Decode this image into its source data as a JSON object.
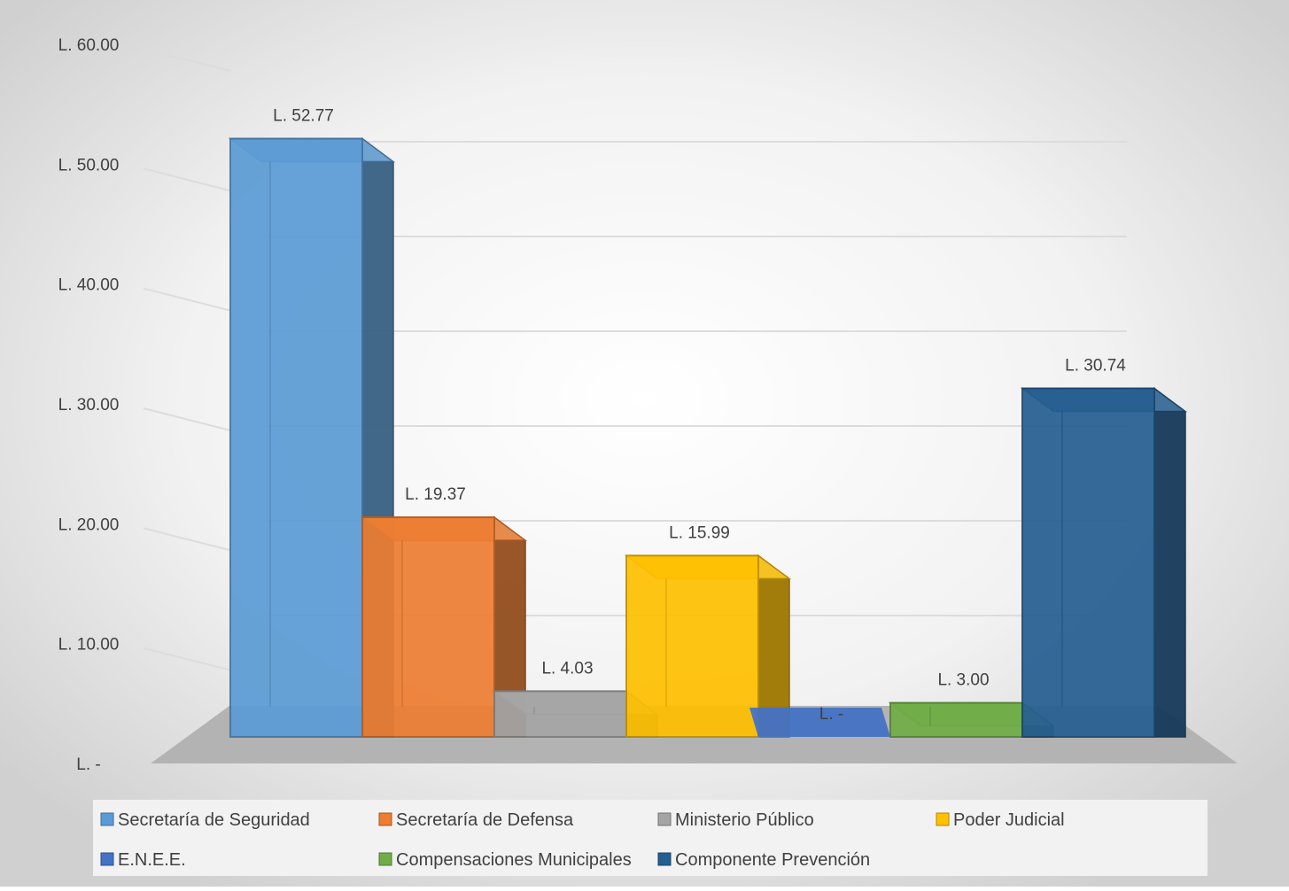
{
  "chart_data": {
    "type": "bar",
    "subtype": "3d-column",
    "title": "",
    "xlabel": "",
    "ylabel": "",
    "ylim": [
      0,
      60
    ],
    "grid": true,
    "legend_position": "bottom",
    "y_ticks": [
      {
        "value": 0,
        "label": "L. -"
      },
      {
        "value": 10,
        "label": "L. 10.00"
      },
      {
        "value": 20,
        "label": "L. 20.00"
      },
      {
        "value": 30,
        "label": "L. 30.00"
      },
      {
        "value": 40,
        "label": "L. 40.00"
      },
      {
        "value": 50,
        "label": "L. 50.00"
      },
      {
        "value": 60,
        "label": "L. 60.00"
      }
    ],
    "series": [
      {
        "name": "Secretaría de Seguridad",
        "value": 52.77,
        "label": "L. 52.77",
        "color": "#5B9BD5"
      },
      {
        "name": "Secretaría de Defensa",
        "value": 19.37,
        "label": "L. 19.37",
        "color": "#ED7D31"
      },
      {
        "name": "Ministerio Público",
        "value": 4.03,
        "label": "L. 4.03",
        "color": "#A5A5A5"
      },
      {
        "name": "Poder Judicial",
        "value": 15.99,
        "label": "L. 15.99",
        "color": "#FFC000"
      },
      {
        "name": "E.N.E.E.",
        "value": 0,
        "label": "L. -",
        "color": "#4472C4"
      },
      {
        "name": "Compensaciones Municipales",
        "value": 3.0,
        "label": "L. 3.00",
        "color": "#70AD47"
      },
      {
        "name": "Componente Prevención",
        "value": 30.74,
        "label": "L. 30.74",
        "color": "#255E91"
      }
    ]
  }
}
